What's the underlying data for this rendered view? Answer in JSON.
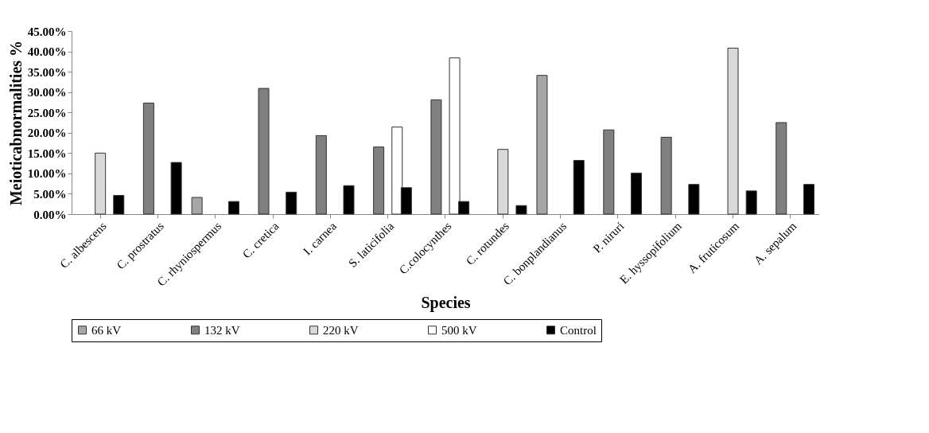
{
  "chart_data": {
    "type": "bar",
    "xlabel": "Species",
    "ylabel": "Meioticabnormalities %",
    "categories": [
      "C. albescens",
      "C. prostratus",
      "C. rhyniospermus",
      "C. cretica",
      "I. carnea",
      "S. laticifolia",
      "C.colocynthes",
      "C. rotundes",
      "C. bonplandianus",
      "P. niruri",
      "E. hyssopifolium",
      "A. fruticosum",
      "A. sepalum"
    ],
    "series": [
      {
        "name": "66 kV",
        "color": "#a6a6a6",
        "values": [
          null,
          null,
          4.1,
          null,
          null,
          null,
          null,
          null,
          34.1,
          null,
          null,
          null,
          null
        ]
      },
      {
        "name": "132 kV",
        "color": "#808080",
        "values": [
          null,
          27.3,
          null,
          30.9,
          19.3,
          16.5,
          28.1,
          null,
          null,
          20.7,
          18.9,
          null,
          22.5
        ]
      },
      {
        "name": "220 kV",
        "color": "#d9d9d9",
        "values": [
          15.0,
          null,
          null,
          null,
          null,
          null,
          null,
          15.9,
          null,
          null,
          null,
          40.8,
          null
        ]
      },
      {
        "name": "500 kV",
        "color": "#ffffff",
        "values": [
          null,
          null,
          null,
          null,
          null,
          21.4,
          38.4,
          null,
          null,
          null,
          null,
          null,
          null
        ]
      },
      {
        "name": "Control",
        "color": "#000000",
        "values": [
          4.6,
          12.7,
          3.1,
          5.4,
          7.0,
          6.5,
          3.1,
          2.1,
          13.2,
          10.1,
          7.3,
          5.7,
          7.3
        ]
      }
    ],
    "ylim": [
      0,
      45
    ],
    "yticks": [
      {
        "value": 0,
        "label": "0.00%"
      },
      {
        "value": 5,
        "label": "5.00%"
      },
      {
        "value": 10,
        "label": "10.00%"
      },
      {
        "value": 15,
        "label": "15.00%"
      },
      {
        "value": 20,
        "label": "20.00%"
      },
      {
        "value": 25,
        "label": "25.00%"
      },
      {
        "value": 30,
        "label": "30.00%"
      },
      {
        "value": 35,
        "label": "35.00%"
      },
      {
        "value": 40,
        "label": "40.00%"
      },
      {
        "value": 45,
        "label": "45.00%"
      }
    ],
    "grid": false,
    "legend": "bottom"
  }
}
